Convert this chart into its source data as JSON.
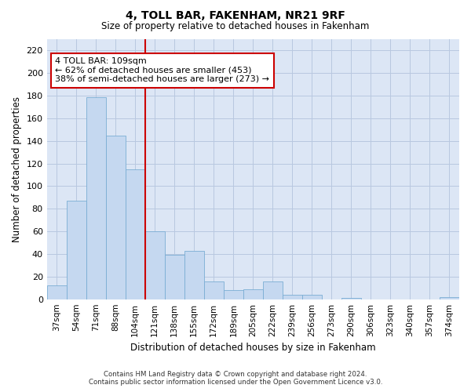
{
  "title": "4, TOLL BAR, FAKENHAM, NR21 9RF",
  "subtitle": "Size of property relative to detached houses in Fakenham",
  "xlabel": "Distribution of detached houses by size in Fakenham",
  "ylabel": "Number of detached properties",
  "categories": [
    "37sqm",
    "54sqm",
    "71sqm",
    "88sqm",
    "104sqm",
    "121sqm",
    "138sqm",
    "155sqm",
    "172sqm",
    "189sqm",
    "205sqm",
    "222sqm",
    "239sqm",
    "256sqm",
    "273sqm",
    "290sqm",
    "306sqm",
    "323sqm",
    "340sqm",
    "357sqm",
    "374sqm"
  ],
  "values": [
    12,
    87,
    179,
    145,
    115,
    60,
    39,
    43,
    16,
    8,
    9,
    16,
    4,
    4,
    0,
    1,
    0,
    0,
    0,
    0,
    2
  ],
  "bar_color": "#c5d8f0",
  "bar_edge_color": "#7aadd4",
  "grid_color": "#b8c8e0",
  "background_color": "#dce6f5",
  "property_line_index": 4,
  "annotation_line1": "4 TOLL BAR: 109sqm",
  "annotation_line2": "← 62% of detached houses are smaller (453)",
  "annotation_line3": "38% of semi-detached houses are larger (273) →",
  "annotation_box_color": "#ffffff",
  "annotation_box_edge": "#cc0000",
  "vline_color": "#cc0000",
  "ylim": [
    0,
    230
  ],
  "yticks": [
    0,
    20,
    40,
    60,
    80,
    100,
    120,
    140,
    160,
    180,
    200,
    220
  ],
  "footer_line1": "Contains HM Land Registry data © Crown copyright and database right 2024.",
  "footer_line2": "Contains public sector information licensed under the Open Government Licence v3.0."
}
